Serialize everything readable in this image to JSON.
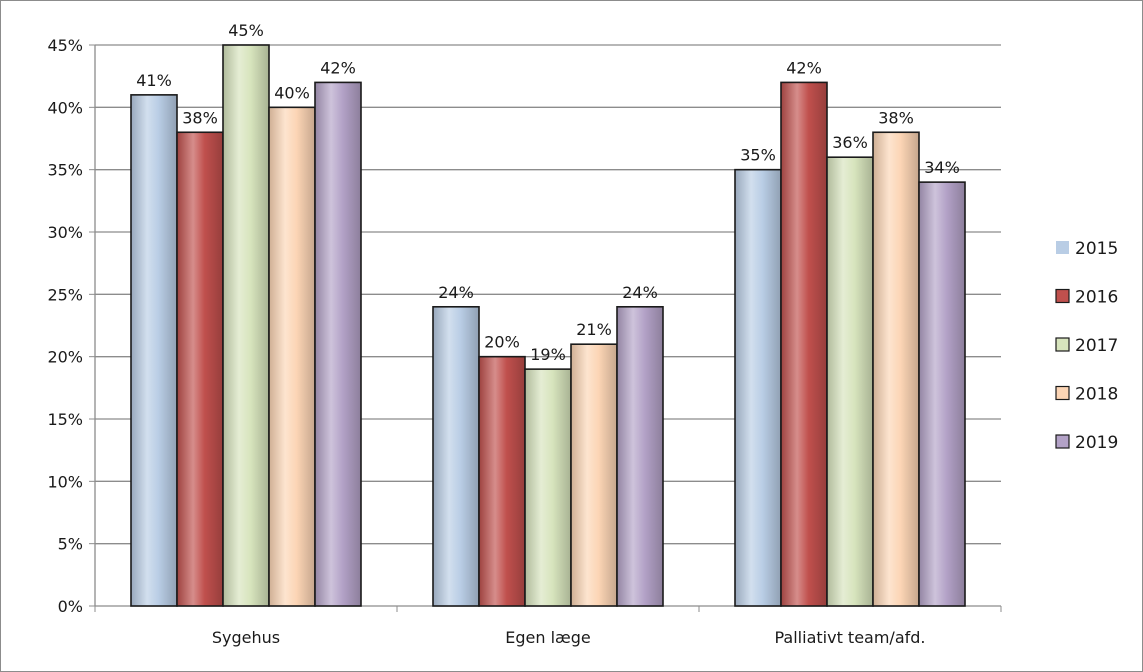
{
  "chart_data": {
    "type": "bar",
    "title": "",
    "xlabel": "",
    "ylabel": "",
    "categories": [
      "Sygehus",
      "Egen læge",
      "Palliativt team/afd."
    ],
    "series": [
      {
        "name": "2015",
        "values": [
          41,
          24,
          35
        ],
        "labels": [
          "41%",
          "24%",
          "35%"
        ],
        "color": "#b9cde5"
      },
      {
        "name": "2016",
        "values": [
          38,
          20,
          42
        ],
        "labels": [
          "38%",
          "20%",
          "42%"
        ],
        "color": "#c0504d"
      },
      {
        "name": "2017",
        "values": [
          45,
          19,
          36
        ],
        "labels": [
          "45%",
          "19%",
          "36%"
        ],
        "color": "#d7e4bd"
      },
      {
        "name": "2018",
        "values": [
          40,
          21,
          38
        ],
        "labels": [
          "40%",
          "21%",
          "38%"
        ],
        "color": "#fcd5b5"
      },
      {
        "name": "2019",
        "values": [
          42,
          24,
          34
        ],
        "labels": [
          "42%",
          "24%",
          "34%"
        ],
        "color": "#b3a2c7"
      }
    ],
    "ylim": [
      0,
      45
    ],
    "yticks": [
      0,
      5,
      10,
      15,
      20,
      25,
      30,
      35,
      40,
      45
    ],
    "ytick_labels": [
      "0%",
      "5%",
      "10%",
      "15%",
      "20%",
      "25%",
      "30%",
      "35%",
      "40%",
      "45%"
    ],
    "grid": true,
    "legend_position": "right"
  }
}
